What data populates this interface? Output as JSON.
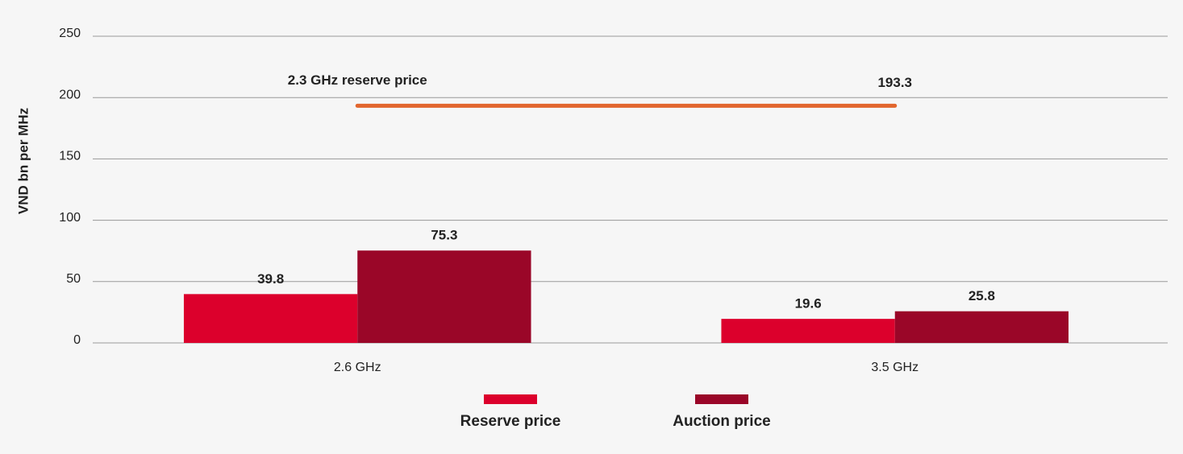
{
  "chart_data": {
    "type": "bar",
    "y_label": "VND bn per MHz",
    "categories": [
      "2.6 GHz",
      "3.5 GHz"
    ],
    "series": [
      {
        "name": "Reserve price",
        "color": "#dc002c",
        "values": [
          39.8,
          19.6
        ]
      },
      {
        "name": "Auction price",
        "color": "#9a0628",
        "values": [
          75.3,
          25.8
        ]
      }
    ],
    "reference_line": {
      "label": "2.3 GHz reserve price",
      "value": 193.3,
      "color": "#e2662e"
    },
    "ylim": [
      0,
      250
    ],
    "yticks": [
      0,
      50,
      100,
      150,
      200,
      250
    ],
    "grid": true,
    "legend": "bottom"
  }
}
